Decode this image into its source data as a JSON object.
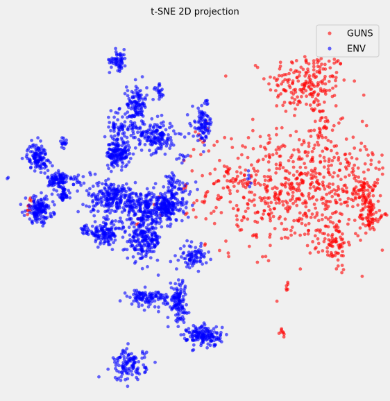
{
  "chart_data": {
    "type": "scatter",
    "title": "t-SNE 2D projection",
    "xlabel": "",
    "ylabel": "",
    "axes_visible": false,
    "grid": false,
    "legend_position": "top-right",
    "series": [
      {
        "name": "GUNS",
        "color": "#ff0000",
        "clusters": [
          {
            "cx": 65,
            "cy": 37,
            "sx": 12,
            "sy": 6,
            "n": 200
          },
          {
            "cx": 61,
            "cy": 1,
            "sx": 27,
            "sy": 11,
            "n": 650
          },
          {
            "cx": 95,
            "cy": 1,
            "sx": 3,
            "sy": 4,
            "n": 55
          },
          {
            "cx": 98,
            "cy": -8,
            "sx": 3,
            "sy": 3,
            "n": 60
          },
          {
            "cx": 79,
            "cy": -18,
            "sx": 4,
            "sy": 5,
            "n": 70
          },
          {
            "cx": 73,
            "cy": 22,
            "sx": 3,
            "sy": 3,
            "n": 25
          },
          {
            "cx": 54,
            "cy": -32,
            "sx": 1,
            "sy": 1,
            "n": 6
          },
          {
            "cx": 52,
            "cy": -48,
            "sx": 1,
            "sy": 1,
            "n": 8
          },
          {
            "cx": 23,
            "cy": 5,
            "sx": 7,
            "sy": 2,
            "n": 25
          },
          {
            "cx": 0,
            "cy": 1,
            "sx": 1,
            "sy": 1,
            "n": 3
          },
          {
            "cx": -12,
            "cy": -4,
            "sx": 2,
            "sy": 2,
            "n": 4
          },
          {
            "cx": -83,
            "cy": -5,
            "sx": 1,
            "sy": 2,
            "n": 10
          },
          {
            "cx": -26,
            "cy": -10,
            "sx": 2,
            "sy": 1,
            "n": 3
          },
          {
            "cx": 9,
            "cy": 18,
            "sx": 3,
            "sy": 4,
            "n": 8
          },
          {
            "cx": 29,
            "cy": -10,
            "sx": 2,
            "sy": 1,
            "n": 5
          }
        ]
      },
      {
        "name": "ENV",
        "color": "#0000ff",
        "clusters": [
          {
            "cx": -36,
            "cy": 45,
            "sx": 2.5,
            "sy": 2,
            "n": 60
          },
          {
            "cx": -26,
            "cy": 30,
            "sx": 3,
            "sy": 4,
            "n": 120
          },
          {
            "cx": -36,
            "cy": 22,
            "sx": 4,
            "sy": 3,
            "n": 60
          },
          {
            "cx": -16,
            "cy": 19,
            "sx": 6,
            "sy": 3,
            "n": 160
          },
          {
            "cx": -36,
            "cy": 13,
            "sx": 3.5,
            "sy": 2.5,
            "n": 160
          },
          {
            "cx": -79,
            "cy": 12,
            "sx": 3,
            "sy": 2.5,
            "n": 120
          },
          {
            "cx": -65,
            "cy": 17,
            "sx": 1,
            "sy": 1,
            "n": 15
          },
          {
            "cx": -68,
            "cy": 4,
            "sx": 3,
            "sy": 2,
            "n": 100
          },
          {
            "cx": -56,
            "cy": 4,
            "sx": 3,
            "sy": 2,
            "n": 20
          },
          {
            "cx": -38,
            "cy": -2,
            "sx": 8,
            "sy": 3,
            "n": 240
          },
          {
            "cx": -22,
            "cy": -5,
            "sx": 5,
            "sy": 3,
            "n": 120
          },
          {
            "cx": -10,
            "cy": -5,
            "sx": 5,
            "sy": 3,
            "n": 220
          },
          {
            "cx": -78,
            "cy": -6,
            "sx": 4,
            "sy": 2.5,
            "n": 150
          },
          {
            "cx": -65,
            "cy": -1,
            "sx": 1.5,
            "sy": 1.5,
            "n": 40
          },
          {
            "cx": -43,
            "cy": -14,
            "sx": 5,
            "sy": 2,
            "n": 130
          },
          {
            "cx": -54,
            "cy": -13,
            "sx": 1.5,
            "sy": 1,
            "n": 15
          },
          {
            "cx": -22,
            "cy": -16,
            "sx": 5,
            "sy": 4,
            "n": 220
          },
          {
            "cx": 9,
            "cy": 23,
            "sx": 3,
            "sy": 3,
            "n": 90
          },
          {
            "cx": 4,
            "cy": -22,
            "sx": 4,
            "sy": 2,
            "n": 80
          },
          {
            "cx": -20,
            "cy": -36,
            "sx": 6,
            "sy": 1.5,
            "n": 110
          },
          {
            "cx": -4,
            "cy": -37,
            "sx": 2.5,
            "sy": 4,
            "n": 120
          },
          {
            "cx": 10,
            "cy": -49,
            "sx": 5,
            "sy": 2,
            "n": 160
          },
          {
            "cx": -30,
            "cy": -59,
            "sx": 5,
            "sy": 3,
            "n": 120
          },
          {
            "cx": -14,
            "cy": 34,
            "sx": 1.5,
            "sy": 1.5,
            "n": 20
          },
          {
            "cx": 11,
            "cy": 31,
            "sx": 1,
            "sy": 0.5,
            "n": 5
          },
          {
            "cx": -7,
            "cy": 4,
            "sx": 2,
            "sy": 2,
            "n": 25
          },
          {
            "cx": -2,
            "cy": 12,
            "sx": 2,
            "sy": 1,
            "n": 8
          },
          {
            "cx": 33,
            "cy": 4,
            "sx": 1,
            "sy": 2,
            "n": 6
          },
          {
            "cx": -95,
            "cy": 4,
            "sx": 0.5,
            "sy": 0.5,
            "n": 2
          },
          {
            "cx": 0,
            "cy": 1,
            "sx": 3,
            "sy": 2,
            "n": 15
          }
        ]
      }
    ],
    "xlim": [
      -96,
      106
    ],
    "ylim": [
      -66,
      56
    ]
  }
}
